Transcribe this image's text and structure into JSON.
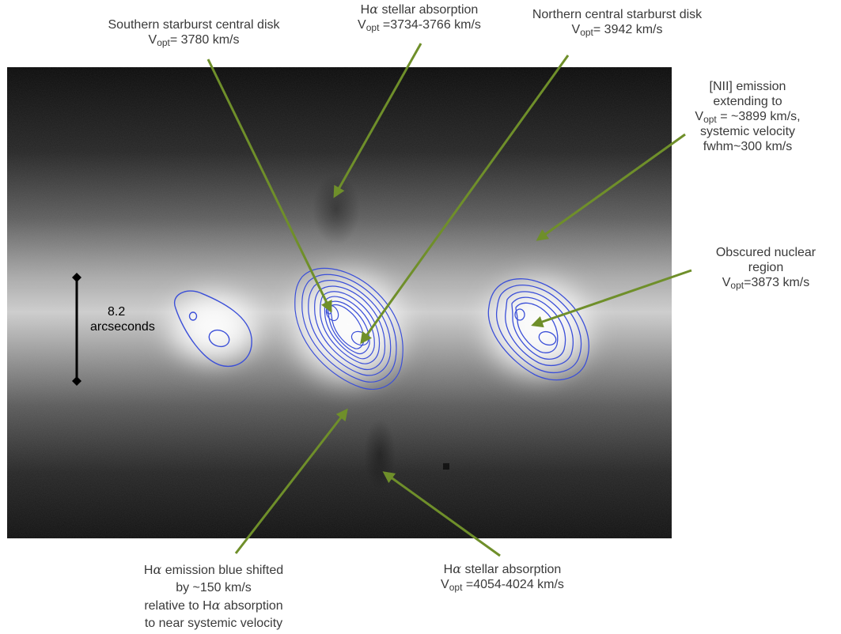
{
  "colors": {
    "arrow": "#6f8f2a",
    "contour": "#3b4fd8",
    "scale_bar": "#000000"
  },
  "scale_bar": {
    "value": "8.2",
    "unit": "arcseconds"
  },
  "annotations": {
    "southern_disk": {
      "line1": "Southern starburst central disk",
      "v_prefix": "V",
      "v_sub": "opt",
      "v_value": "= 3780 km/s"
    },
    "halpha_abs_top": {
      "line1_prefix": "H",
      "line1_alpha": "α",
      "line1_rest": " stellar absorption",
      "v_prefix": "V",
      "v_sub": "opt",
      "v_value": " =3734-3766 km/s"
    },
    "northern_disk": {
      "line1": "Northern central starburst disk",
      "v_prefix": "V",
      "v_sub": "opt",
      "v_value": "= 3942 km/s"
    },
    "nii_emission": {
      "line1": "[NII] emission",
      "line2": "extending to",
      "v_prefix": "V",
      "v_sub": "opt",
      "v_value": " = ~3899 km/s,",
      "line4": "systemic velocity",
      "line5": "fwhm~300 km/s"
    },
    "obscured_nucleus": {
      "line1": "Obscured nuclear",
      "line2": "region",
      "v_prefix": "V",
      "v_sub": "opt",
      "v_value": "=3873 km/s"
    },
    "halpha_emission": {
      "line1_prefix": "H",
      "line1_alpha": "α",
      "line1_rest": " emission blue shifted",
      "line2": "by ~150 km/s",
      "line3_prefix": "relative to H",
      "line3_alpha": "α",
      "line3_rest": " absorption",
      "line4": "to near systemic velocity"
    },
    "halpha_abs_bottom": {
      "line1_prefix": "H",
      "line1_alpha": "α",
      "line1_rest": " stellar absorption",
      "v_prefix": "V",
      "v_sub": "opt",
      "v_value": " =4054-4024 km/s"
    }
  }
}
